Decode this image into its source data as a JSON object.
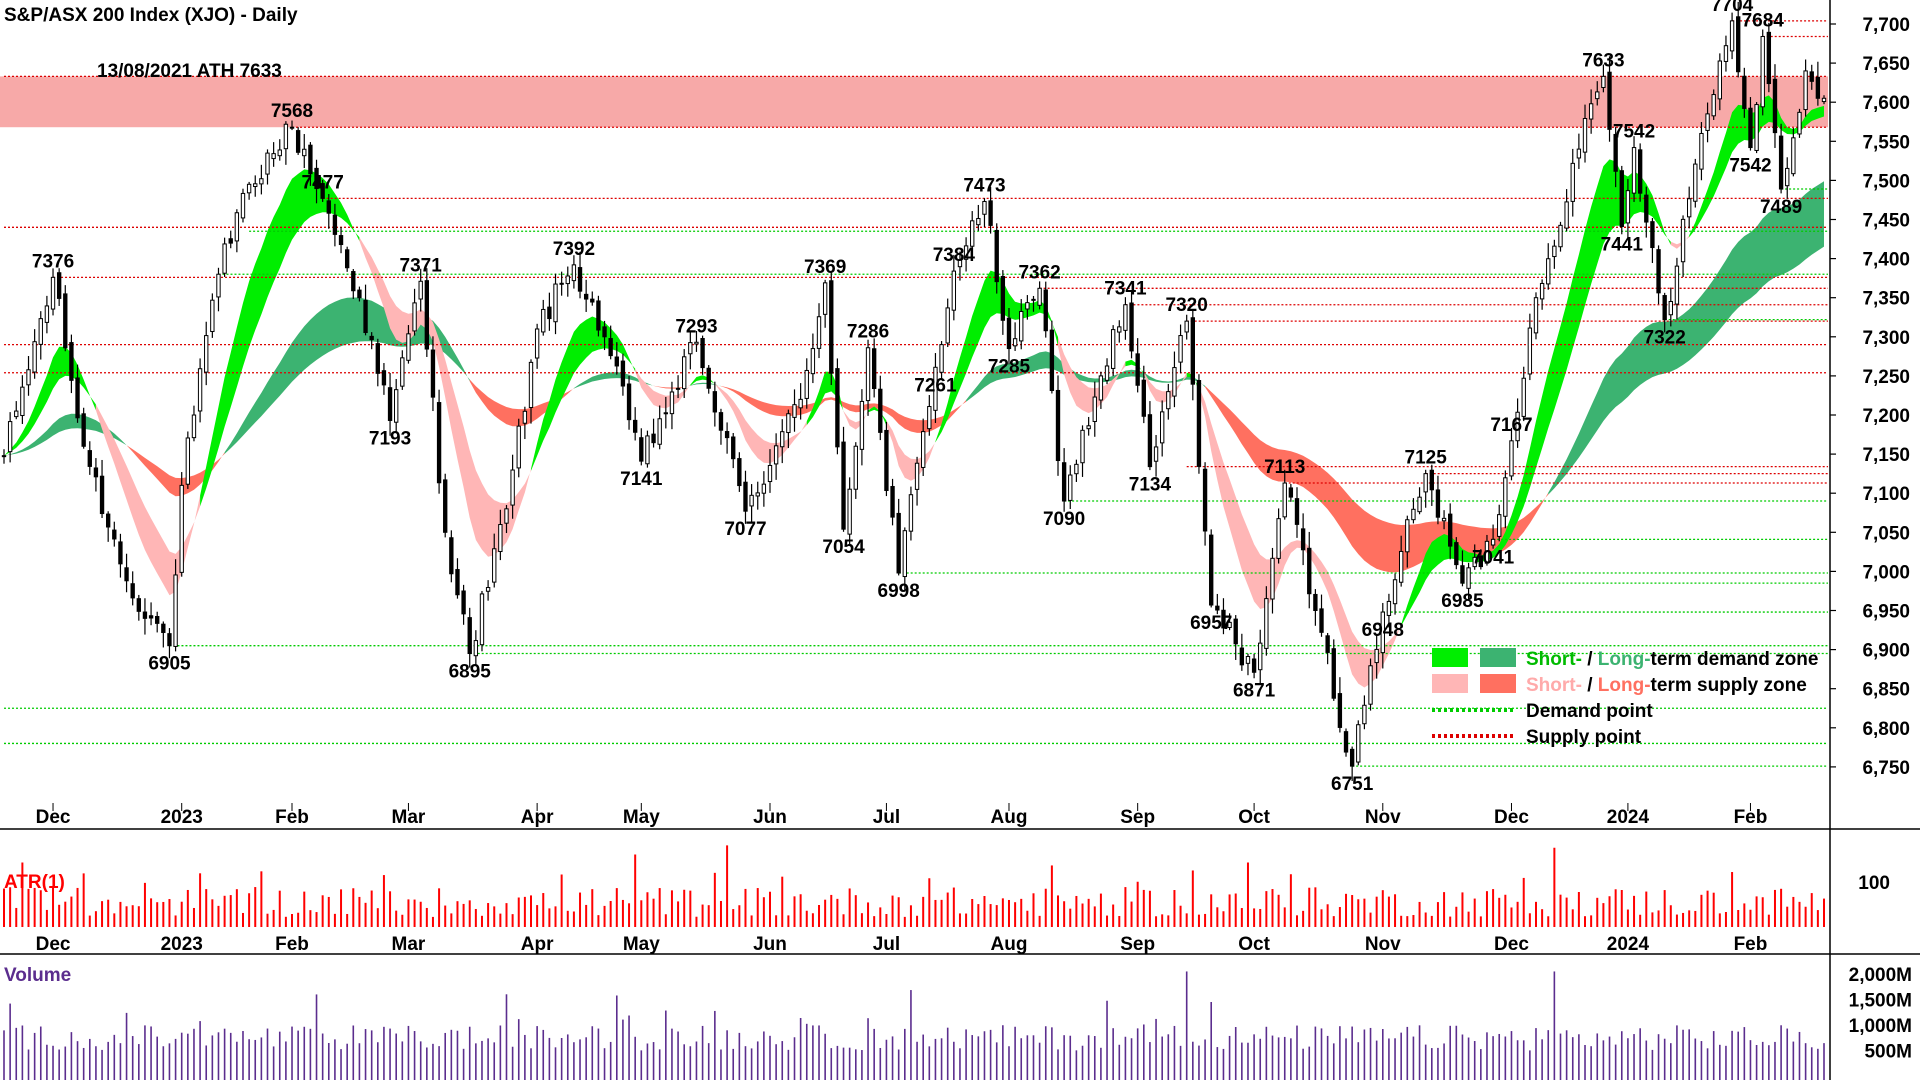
{
  "chart_data": [
    {
      "type": "line",
      "title": "S&P/ASX 200 Index (XJO) - Daily",
      "annotation_ath": "13/08/2021 ATH 7633",
      "ylim": [
        6700,
        7740
      ],
      "y_ticks": [
        "7,700",
        "7,650",
        "7,600",
        "7,550",
        "7,500",
        "7,450",
        "7,400",
        "7,350",
        "7,300",
        "7,250",
        "7,200",
        "7,150",
        "7,100",
        "7,050",
        "7,000",
        "6,950",
        "6,900",
        "6,850",
        "6,800",
        "6,750"
      ],
      "y_tick_values": [
        7700,
        7650,
        7600,
        7550,
        7500,
        7450,
        7400,
        7350,
        7300,
        7250,
        7200,
        7150,
        7100,
        7050,
        7000,
        6950,
        6900,
        6850,
        6800,
        6750
      ],
      "x_tick_labels": [
        "Dec",
        "2023",
        "Feb",
        "Mar",
        "Apr",
        "May",
        "Jun",
        "Jul",
        "Aug",
        "Sep",
        "Oct",
        "Nov",
        "Dec",
        "2024",
        "Feb"
      ],
      "x_tick_sessions": [
        8,
        29,
        47,
        66,
        87,
        104,
        125,
        144,
        164,
        185,
        204,
        225,
        246,
        265,
        285
      ],
      "series": [
        {
          "values": [
            {
              "session": 0,
              "value": 7148
            },
            {
              "session": 8,
              "value": 7376
            },
            {
              "session": 13,
              "value": 7160
            },
            {
              "session": 20,
              "value": 6988
            },
            {
              "session": 27,
              "value": 6905
            },
            {
              "session": 29,
              "value": 7110
            },
            {
              "session": 35,
              "value": 7380
            },
            {
              "session": 40,
              "value": 7495
            },
            {
              "session": 47,
              "value": 7568
            },
            {
              "session": 52,
              "value": 7477
            },
            {
              "session": 58,
              "value": 7350
            },
            {
              "session": 63,
              "value": 7193
            },
            {
              "session": 68,
              "value": 7371
            },
            {
              "session": 72,
              "value": 7050
            },
            {
              "session": 76,
              "value": 6895
            },
            {
              "session": 82,
              "value": 7080
            },
            {
              "session": 87,
              "value": 7310
            },
            {
              "session": 93,
              "value": 7392
            },
            {
              "session": 98,
              "value": 7300
            },
            {
              "session": 104,
              "value": 7141
            },
            {
              "session": 113,
              "value": 7293
            },
            {
              "session": 121,
              "value": 7077
            },
            {
              "session": 130,
              "value": 7220
            },
            {
              "session": 134,
              "value": 7369
            },
            {
              "session": 137,
              "value": 7054
            },
            {
              "session": 141,
              "value": 7286
            },
            {
              "session": 146,
              "value": 6998
            },
            {
              "session": 152,
              "value": 7261
            },
            {
              "session": 155,
              "value": 7384
            },
            {
              "session": 160,
              "value": 7473
            },
            {
              "session": 164,
              "value": 7285
            },
            {
              "session": 169,
              "value": 7362
            },
            {
              "session": 173,
              "value": 7090
            },
            {
              "session": 179,
              "value": 7250
            },
            {
              "session": 183,
              "value": 7341
            },
            {
              "session": 187,
              "value": 7134
            },
            {
              "session": 193,
              "value": 7320
            },
            {
              "session": 197,
              "value": 6957
            },
            {
              "session": 204,
              "value": 6871
            },
            {
              "session": 209,
              "value": 7113
            },
            {
              "session": 214,
              "value": 6950
            },
            {
              "session": 220,
              "value": 6751
            },
            {
              "session": 225,
              "value": 6948
            },
            {
              "session": 232,
              "value": 7125
            },
            {
              "session": 238,
              "value": 6985
            },
            {
              "session": 243,
              "value": 7041
            },
            {
              "session": 246,
              "value": 7167
            },
            {
              "session": 250,
              "value": 7350
            },
            {
              "session": 257,
              "value": 7540
            },
            {
              "session": 261,
              "value": 7633
            },
            {
              "session": 264,
              "value": 7441
            },
            {
              "session": 266,
              "value": 7542
            },
            {
              "session": 271,
              "value": 7322
            },
            {
              "session": 277,
              "value": 7560
            },
            {
              "session": 282,
              "value": 7704
            },
            {
              "session": 285,
              "value": 7542
            },
            {
              "session": 287,
              "value": 7684
            },
            {
              "session": 290,
              "value": 7489
            },
            {
              "session": 294,
              "value": 7640
            },
            {
              "session": 296,
              "value": 7605
            }
          ]
        }
      ],
      "price_labels": [
        {
          "text": "7376",
          "session": 8,
          "value": 7376,
          "pos": "above"
        },
        {
          "text": "6905",
          "session": 27,
          "value": 6905,
          "pos": "below"
        },
        {
          "text": "7568",
          "session": 47,
          "value": 7568,
          "pos": "above"
        },
        {
          "text": "7477",
          "session": 52,
          "value": 7477,
          "pos": "above"
        },
        {
          "text": "7193",
          "session": 63,
          "value": 7193,
          "pos": "below"
        },
        {
          "text": "7371",
          "session": 68,
          "value": 7371,
          "pos": "above"
        },
        {
          "text": "6895",
          "session": 76,
          "value": 6895,
          "pos": "below"
        },
        {
          "text": "7392",
          "session": 93,
          "value": 7392,
          "pos": "above"
        },
        {
          "text": "7141",
          "session": 104,
          "value": 7141,
          "pos": "below"
        },
        {
          "text": "7293",
          "session": 113,
          "value": 7293,
          "pos": "above"
        },
        {
          "text": "7077",
          "session": 121,
          "value": 7077,
          "pos": "below"
        },
        {
          "text": "7369",
          "session": 134,
          "value": 7369,
          "pos": "above"
        },
        {
          "text": "7054",
          "session": 137,
          "value": 7054,
          "pos": "below"
        },
        {
          "text": "7286",
          "session": 141,
          "value": 7286,
          "pos": "above"
        },
        {
          "text": "6998",
          "session": 146,
          "value": 6998,
          "pos": "below"
        },
        {
          "text": "7261",
          "session": 152,
          "value": 7261,
          "pos": "below"
        },
        {
          "text": "7384",
          "session": 155,
          "value": 7384,
          "pos": "above"
        },
        {
          "text": "7473",
          "session": 160,
          "value": 7473,
          "pos": "above"
        },
        {
          "text": "7285",
          "session": 164,
          "value": 7285,
          "pos": "below"
        },
        {
          "text": "7362",
          "session": 169,
          "value": 7362,
          "pos": "above"
        },
        {
          "text": "7090",
          "session": 173,
          "value": 7090,
          "pos": "below"
        },
        {
          "text": "7341",
          "session": 183,
          "value": 7341,
          "pos": "above"
        },
        {
          "text": "7134",
          "session": 187,
          "value": 7134,
          "pos": "below"
        },
        {
          "text": "7320",
          "session": 193,
          "value": 7320,
          "pos": "above"
        },
        {
          "text": "6957",
          "session": 197,
          "value": 6957,
          "pos": "below"
        },
        {
          "text": "6871",
          "session": 204,
          "value": 6871,
          "pos": "below"
        },
        {
          "text": "7113",
          "session": 209,
          "value": 7113,
          "pos": "above"
        },
        {
          "text": "6751",
          "session": 220,
          "value": 6751,
          "pos": "below"
        },
        {
          "text": "6948",
          "session": 225,
          "value": 6948,
          "pos": "below"
        },
        {
          "text": "7125",
          "session": 232,
          "value": 7125,
          "pos": "above"
        },
        {
          "text": "6985",
          "session": 238,
          "value": 6985,
          "pos": "below"
        },
        {
          "text": "7041",
          "session": 243,
          "value": 7041,
          "pos": "below"
        },
        {
          "text": "7167",
          "session": 246,
          "value": 7167,
          "pos": "above"
        },
        {
          "text": "7633",
          "session": 261,
          "value": 7633,
          "pos": "above"
        },
        {
          "text": "7441",
          "session": 264,
          "value": 7441,
          "pos": "below"
        },
        {
          "text": "7542",
          "session": 266,
          "value": 7542,
          "pos": "above"
        },
        {
          "text": "7322",
          "session": 271,
          "value": 7322,
          "pos": "below"
        },
        {
          "text": "7704",
          "session": 282,
          "value": 7704,
          "pos": "above"
        },
        {
          "text": "7542",
          "session": 285,
          "value": 7542,
          "pos": "below"
        },
        {
          "text": "7684",
          "session": 287,
          "value": 7684,
          "pos": "above"
        },
        {
          "text": "7489",
          "session": 290,
          "value": 7489,
          "pos": "below"
        }
      ],
      "supply_zone": {
        "from": 7568,
        "to": 7633,
        "color": "#F7A9A8"
      },
      "supply_points": [
        {
          "value": 7704,
          "from_session": 282
        },
        {
          "value": 7684,
          "from_session": 287
        },
        {
          "value": 7633,
          "from_session": 0
        },
        {
          "value": 7568,
          "from_session": 47
        },
        {
          "value": 7477,
          "from_session": 52
        },
        {
          "value": 7440,
          "from_session": 0
        },
        {
          "value": 7376,
          "from_session": 8
        },
        {
          "value": 7362,
          "from_session": 169
        },
        {
          "value": 7341,
          "from_session": 183
        },
        {
          "value": 7320,
          "from_session": 193
        },
        {
          "value": 7290,
          "from_session": 0
        },
        {
          "value": 7254,
          "from_session": 0
        },
        {
          "value": 7134,
          "from_session": 193
        },
        {
          "value": 7113,
          "from_session": 209
        },
        {
          "value": 7125,
          "from_session": 232
        }
      ],
      "demand_points": [
        {
          "value": 7489,
          "from_session": 290
        },
        {
          "value": 7322,
          "from_session": 271
        },
        {
          "value": 7435,
          "from_session": 40
        },
        {
          "value": 7380,
          "from_session": 35
        },
        {
          "value": 7090,
          "from_session": 173
        },
        {
          "value": 7041,
          "from_session": 243
        },
        {
          "value": 6998,
          "from_session": 146
        },
        {
          "value": 6985,
          "from_session": 238
        },
        {
          "value": 6948,
          "from_session": 225
        },
        {
          "value": 6905,
          "from_session": 27
        },
        {
          "value": 6895,
          "from_session": 76
        },
        {
          "value": 6825,
          "from_session": 0
        },
        {
          "value": 6780,
          "from_session": 0
        },
        {
          "value": 6751,
          "from_session": 220
        }
      ],
      "legend": [
        {
          "label_parts": [
            "Short-",
            " / ",
            "Long-",
            "term demand zone"
          ],
          "colors": [
            "#00EE00",
            "#3CB371"
          ],
          "text_colors": [
            "#00BB00",
            "#000000",
            "#3CB371",
            "#000000"
          ]
        },
        {
          "label_parts": [
            "Short-",
            " / ",
            "Long-",
            "term supply zone"
          ],
          "colors": [
            "#FFB6B6",
            "#FF7060"
          ],
          "text_colors": [
            "#FFAAAA",
            "#000000",
            "#FF7060",
            "#000000"
          ]
        },
        {
          "label": "Demand point",
          "style": "dotted",
          "color": "#00CC00"
        },
        {
          "label": "Supply point",
          "style": "dotted",
          "color": "#DD0000"
        }
      ],
      "legend_placement": "bottom-right",
      "colors": {
        "demand_short": "#00EE00",
        "demand_long": "#3CB371",
        "supply_short": "#FFB6B6",
        "supply_long": "#FF7060",
        "ma_supply_zone": "#F7A9A8",
        "candle": "#000000"
      },
      "grid": false
    },
    {
      "type": "bar",
      "title": "ATR(1)",
      "y_ticks": [
        "100"
      ],
      "y_tick_values": [
        100
      ],
      "x_tick_labels": [
        "Dec",
        "2023",
        "Feb",
        "Mar",
        "Apr",
        "May",
        "Jun",
        "Jul",
        "Aug",
        "Sep",
        "Oct",
        "Nov",
        "Dec",
        "2024",
        "Feb"
      ],
      "color": "#FF0000"
    },
    {
      "type": "bar",
      "title": "Volume",
      "y_ticks": [
        "2,000M",
        "1,500M",
        "1,000M",
        "500M"
      ],
      "y_tick_values": [
        2000,
        1500,
        1000,
        500
      ],
      "color": "#5B2D8E"
    }
  ]
}
